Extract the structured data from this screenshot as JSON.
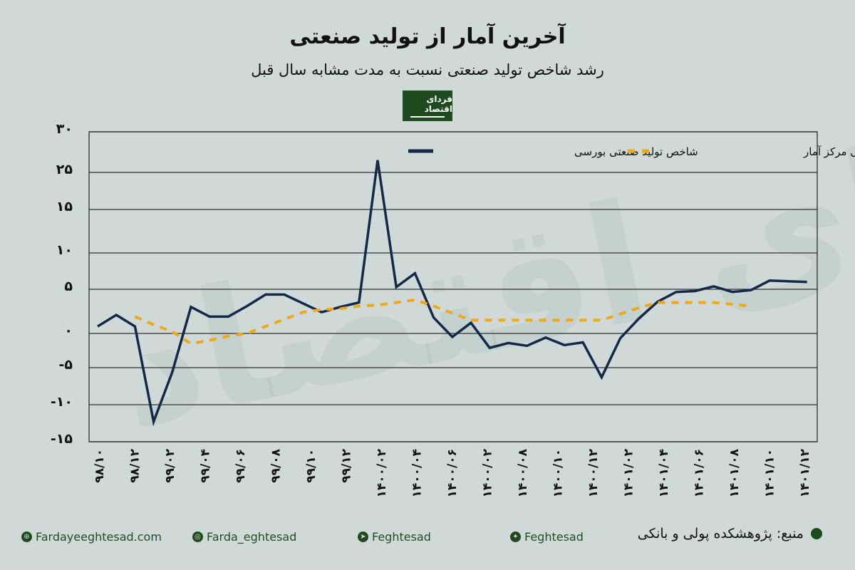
{
  "header": {
    "title": "آخرین آمار از تولید صنعتی",
    "subtitle": "رشد شاخص تولید صنعتی نسبت به مدت مشابه سال قبل",
    "logo_text": "فردای اقتصاد",
    "watermark_text": "فردای اقتصاد"
  },
  "colors": {
    "background": "#cfd9d7",
    "series_bourse": "#14284a",
    "series_amar": "#f0a817",
    "brand_green": "#1e4b1d"
  },
  "chart_data": {
    "type": "line",
    "title": "رشد شاخص تولید صنعتی نسبت به مدت مشابه سال قبل",
    "xlabel": "",
    "ylabel": "",
    "y_tick_values": [
      30,
      25,
      15,
      10,
      5,
      0,
      -5,
      -10,
      -15
    ],
    "y_tick_labels": [
      "۳۰",
      "۲۵",
      "۱۵",
      "۱۰",
      "۵",
      "۰",
      "-۵",
      "-۱۰",
      "-۱۵"
    ],
    "ylim": [
      -15,
      30
    ],
    "grid": true,
    "legend_position": "top",
    "x_tick_labels": [
      "۹۸/۱۰",
      "۹۸/۱۲",
      "۹۹/۰۲",
      "۹۹/۰۴",
      "۹۹/۰۶",
      "۹۹/۰۸",
      "۹۹/۱۰",
      "۹۹/۱۲",
      "۱۴۰۰/۰۲",
      "۱۴۰۰/۰۴",
      "۱۴۰۰/۰۶",
      "۱۴۰۰/۰۲",
      "۱۴۰۰/۰۸",
      "۱۴۰۰/۱۰",
      "۱۴۰۰/۱۲",
      "۱۴۰۱/۰۲",
      "۱۴۰۱/۰۴",
      "۱۴۰۱/۰۶",
      "۱۴۰۱/۰۸",
      "۱۴۰۱/۱۰",
      "۱۴۰۱/۱۲"
    ],
    "series": [
      {
        "name": "شاخص تولید صنعتی بورسی",
        "style": "solid",
        "values": [
          0.8,
          2.1,
          0.8,
          -12.3,
          -5.6,
          3.0,
          1.9,
          1.9,
          3.1,
          4.4,
          4.4,
          3.4,
          2.4,
          3.0,
          3.5,
          26.5,
          5.3,
          7.2,
          1.8,
          -0.5,
          1.2,
          -2.1,
          -1.4,
          -1.8,
          -0.6,
          -1.7,
          -1.3,
          -6.3,
          -0.7,
          1.7,
          3.6,
          4.7,
          4.8,
          5.4,
          4.7,
          4.9,
          6.2,
          6.1,
          6.0
        ]
      },
      {
        "name": "شاخص تولید صنعتی مرکز آمار",
        "style": "dashed",
        "values": [
          null,
          null,
          1.9,
          1.0,
          0.2,
          -1.5,
          -1.0,
          -0.4,
          0.0,
          0.8,
          1.6,
          2.4,
          2.7,
          2.8,
          3.1,
          3.2,
          3.5,
          3.8,
          3.1,
          2.3,
          1.5,
          1.5,
          1.5,
          1.5,
          1.5,
          1.5,
          1.5,
          1.5,
          2.2,
          2.9,
          3.5,
          3.5,
          3.5,
          3.5,
          3.3,
          3.1,
          null,
          null,
          null
        ]
      }
    ]
  },
  "footer": {
    "website": "Fardayeeghtesad.com",
    "instagram": "Farda_eghtesad",
    "telegram": "Feghtesad",
    "twitter": "Feghtesad",
    "source": "منبع: پژوهشکده پولی و بانکی"
  }
}
